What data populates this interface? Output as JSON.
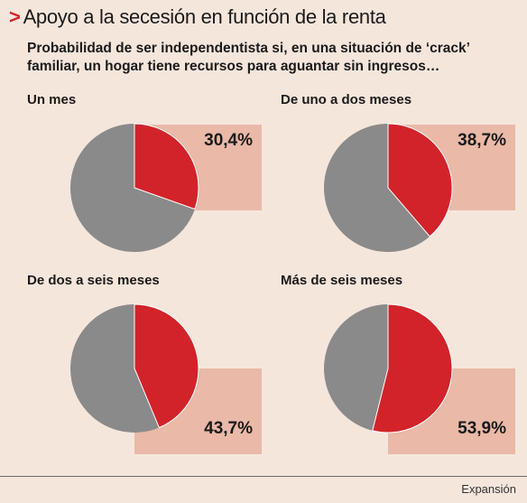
{
  "header": {
    "marker": ">",
    "title": "Apoyo a la secesión en función de la renta",
    "subtitle": "Probabilidad de ser independentista si, en una situación de ‘crack’ familiar, un hogar tiene recursos para aguantar sin ingresos…"
  },
  "chart_data": {
    "type": "pie",
    "charts": [
      {
        "label": "Un mes",
        "value": 30.4,
        "value_label": "30,4%"
      },
      {
        "label": "De uno a dos meses",
        "value": 38.7,
        "value_label": "38,7%"
      },
      {
        "label": "De dos a seis meses",
        "value": 43.7,
        "value_label": "43,7%"
      },
      {
        "label": "Más de seis meses",
        "value": 53.9,
        "value_label": "53,9%"
      }
    ],
    "colors": {
      "highlight": "#d2232a",
      "rest": "#8a8a8a",
      "box": "#eab9a8"
    }
  },
  "footer": {
    "source": "Expansión"
  }
}
